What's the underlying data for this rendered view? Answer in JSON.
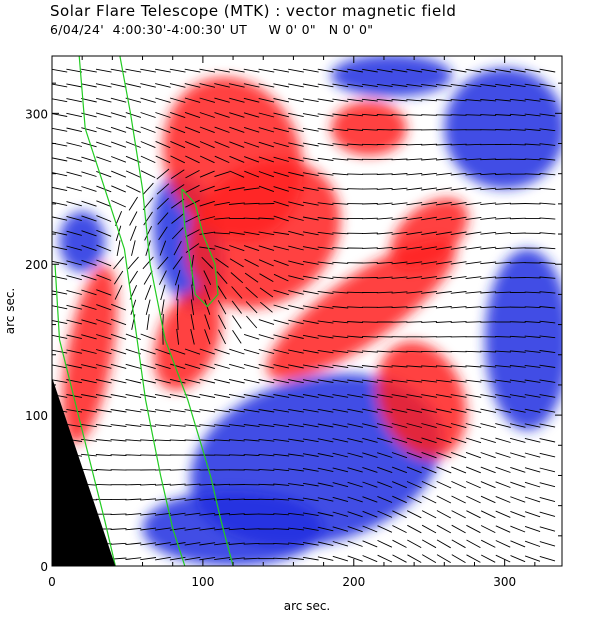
{
  "title": "Solar Flare Telescope (MTK) : vector magnetic field",
  "subtitle": "6/04/24'  4:00:30'-4:00:30' UT     W 0' 0\"   N 0' 0\"",
  "chart_data": {
    "type": "heatmap",
    "title": "Solar Flare Telescope (MTK) : vector magnetic field",
    "subtitle": "6/04/24'  4:00:30'-4:00:30' UT     W 0' 0\"   N 0' 0\"",
    "xlabel": "arc sec.",
    "ylabel": "arc sec.",
    "xlim": [
      0,
      338
    ],
    "ylim": [
      0,
      338
    ],
    "xticks": [
      0,
      100,
      200,
      300
    ],
    "yticks": [
      0,
      100,
      200,
      300
    ],
    "colors": {
      "positive": "#ff2020",
      "negative": "#2030e0",
      "neutral": "#ffffff",
      "contour": "#22cc22",
      "vector": "#000000",
      "off_disk": "#000000"
    },
    "positive_regions": [
      {
        "name": "main-positive-ridge",
        "cx": 205,
        "cy": 170,
        "rx": 75,
        "ry": 22,
        "rot": -35
      },
      {
        "name": "positive-upper-lobe",
        "cx": 120,
        "cy": 270,
        "rx": 45,
        "ry": 55,
        "rot": -20
      },
      {
        "name": "positive-core",
        "cx": 140,
        "cy": 220,
        "rx": 55,
        "ry": 45,
        "rot": -40
      },
      {
        "name": "positive-tail",
        "cx": 245,
        "cy": 110,
        "rx": 28,
        "ry": 40,
        "rot": -20
      },
      {
        "name": "positive-notch",
        "cx": 90,
        "cy": 150,
        "rx": 20,
        "ry": 35,
        "rot": 20
      },
      {
        "name": "positive-right-patch",
        "cx": 250,
        "cy": 220,
        "rx": 30,
        "ry": 18,
        "rot": -40
      },
      {
        "name": "positive-upper-right",
        "cx": 210,
        "cy": 290,
        "rx": 25,
        "ry": 18,
        "rot": 0
      },
      {
        "name": "positive-left-strip",
        "cx": 25,
        "cy": 140,
        "rx": 15,
        "ry": 60,
        "rot": 10
      }
    ],
    "negative_regions": [
      {
        "name": "main-negative-lower",
        "cx": 175,
        "cy": 70,
        "rx": 85,
        "ry": 55,
        "rot": -15
      },
      {
        "name": "negative-umbra",
        "cx": 90,
        "cy": 215,
        "rx": 22,
        "ry": 45,
        "rot": -10
      },
      {
        "name": "negative-lower-left",
        "cx": 120,
        "cy": 25,
        "rx": 60,
        "ry": 25,
        "rot": 0
      },
      {
        "name": "negative-upper-right",
        "cx": 300,
        "cy": 290,
        "rx": 40,
        "ry": 40,
        "rot": 0
      },
      {
        "name": "negative-right-edge",
        "cx": 315,
        "cy": 150,
        "rx": 28,
        "ry": 60,
        "rot": 0
      },
      {
        "name": "negative-top",
        "cx": 225,
        "cy": 325,
        "rx": 40,
        "ry": 14,
        "rot": 0
      },
      {
        "name": "negative-left-patch",
        "cx": 20,
        "cy": 215,
        "rx": 15,
        "ry": 20,
        "rot": 0
      }
    ],
    "limb_line": [
      [
        0,
        125
      ],
      [
        42,
        0
      ]
    ],
    "contours": [
      {
        "name": "contour-limb-outer",
        "points": [
          [
            18,
            338
          ],
          [
            22,
            290
          ],
          [
            35,
            250
          ],
          [
            48,
            210
          ],
          [
            55,
            160
          ],
          [
            62,
            110
          ],
          [
            72,
            60
          ],
          [
            80,
            25
          ],
          [
            88,
            0
          ]
        ]
      },
      {
        "name": "contour-limb-inner",
        "points": [
          [
            2,
            200
          ],
          [
            5,
            150
          ],
          [
            15,
            110
          ],
          [
            25,
            70
          ],
          [
            35,
            30
          ],
          [
            42,
            0
          ]
        ]
      },
      {
        "name": "contour-mid",
        "points": [
          [
            45,
            338
          ],
          [
            52,
            300
          ],
          [
            60,
            250
          ],
          [
            65,
            200
          ],
          [
            75,
            150
          ],
          [
            90,
            110
          ],
          [
            105,
            60
          ],
          [
            112,
            30
          ],
          [
            120,
            0
          ]
        ]
      },
      {
        "name": "contour-sunspot",
        "points": [
          [
            86,
            250
          ],
          [
            95,
            240
          ],
          [
            100,
            220
          ],
          [
            108,
            200
          ],
          [
            110,
            180
          ],
          [
            103,
            172
          ],
          [
            95,
            180
          ],
          [
            92,
            200
          ],
          [
            88,
            225
          ],
          [
            86,
            250
          ]
        ]
      }
    ],
    "vector_field": {
      "spacing": 9.8,
      "length": 10.5
    }
  }
}
